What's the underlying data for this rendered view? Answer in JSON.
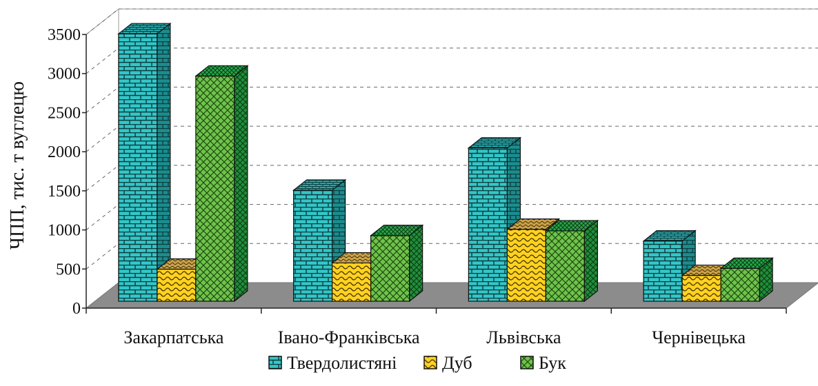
{
  "chart_data": {
    "type": "bar",
    "title": "",
    "xlabel": "",
    "ylabel": "ЧПП, тис. т вуглецю",
    "ylim": [
      0,
      3500
    ],
    "yticks": [
      0,
      500,
      1000,
      1500,
      2000,
      2500,
      3000,
      3500
    ],
    "grid": true,
    "legend_position": "bottom",
    "categories": [
      "Закарпатська",
      "Івано-Франківська",
      "Львівська",
      "Чернівецька"
    ],
    "series": [
      {
        "name": "Твердолистяні",
        "values": [
          3420,
          1420,
          1960,
          770
        ],
        "color": "#33c6c8",
        "pattern": "brick"
      },
      {
        "name": "Дуб",
        "values": [
          410,
          490,
          920,
          330
        ],
        "color": "#f7c81c",
        "pattern": "wave"
      },
      {
        "name": "Бук",
        "values": [
          2880,
          840,
          900,
          420
        ],
        "color": "#6fc34a",
        "pattern": "crosshatch"
      }
    ]
  }
}
